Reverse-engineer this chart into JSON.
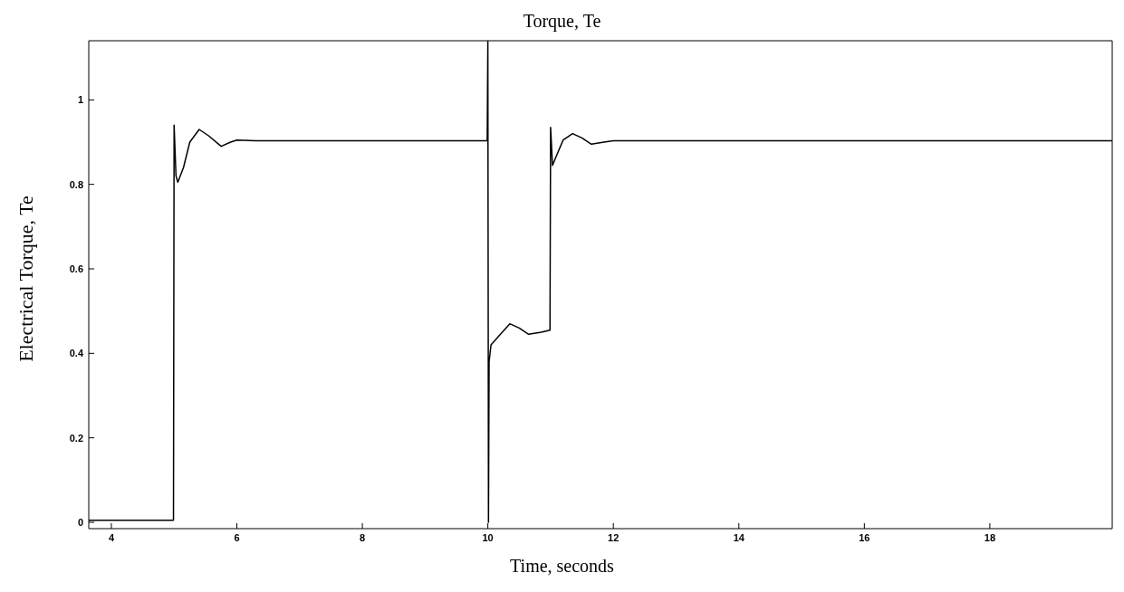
{
  "chart_data": {
    "type": "line",
    "title": "Torque, Te",
    "xlabel": "Time, seconds",
    "ylabel": "Electrical Torque, Te",
    "x": [
      3.64,
      4.99,
      5.0,
      5.03,
      5.06,
      5.15,
      5.25,
      5.4,
      5.55,
      5.75,
      5.9,
      6.0,
      6.3,
      7.0,
      8.0,
      9.0,
      9.99,
      10.0,
      10.01,
      10.02,
      10.05,
      10.2,
      10.35,
      10.5,
      10.65,
      10.85,
      10.99,
      11.0,
      11.03,
      11.1,
      11.2,
      11.35,
      11.5,
      11.65,
      11.85,
      12.0,
      14.0,
      16.0,
      18.0,
      19.95
    ],
    "series": [
      {
        "color": "#000000",
        "values": [
          0.005,
          0.005,
          0.94,
          0.82,
          0.805,
          0.84,
          0.9,
          0.93,
          0.915,
          0.89,
          0.9,
          0.905,
          0.903,
          0.903,
          0.903,
          0.903,
          0.903,
          1.14,
          0.0,
          0.38,
          0.42,
          0.445,
          0.47,
          0.46,
          0.445,
          0.45,
          0.455,
          0.935,
          0.845,
          0.87,
          0.905,
          0.92,
          0.91,
          0.895,
          0.9,
          0.903,
          0.903,
          0.903,
          0.903,
          0.903
        ]
      }
    ],
    "xlim": [
      3.64,
      19.95
    ],
    "ylim": [
      -0.015,
      1.14
    ],
    "xticks": [
      4,
      6,
      8,
      10,
      12,
      14,
      16,
      18
    ],
    "yticks": [
      0,
      0.2,
      0.4,
      0.6,
      0.8,
      1
    ],
    "grid": false,
    "legend": false,
    "marker": "none",
    "line_style": "solid"
  }
}
